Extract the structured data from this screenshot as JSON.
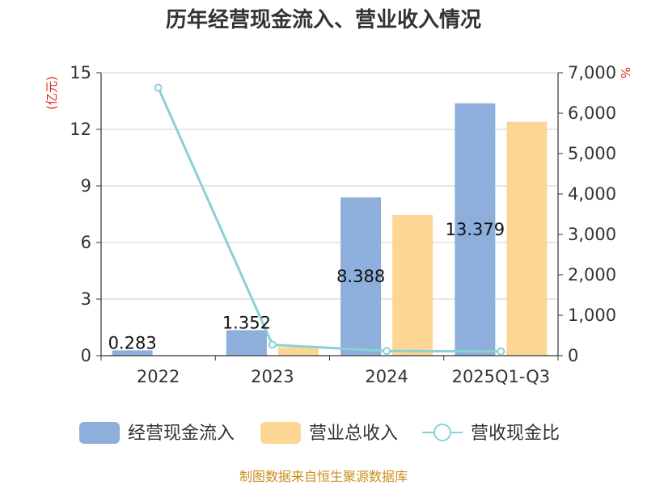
{
  "chart_data": {
    "type": "bar",
    "title": "历年经营现金流入、营业收入情况",
    "categories": [
      "2022",
      "2023",
      "2024",
      "2025Q1-Q3"
    ],
    "y_left": {
      "unit": "(亿元)",
      "range": [
        0,
        15
      ],
      "ticks": [
        "0",
        "3",
        "6",
        "9",
        "12",
        "15"
      ],
      "tick_values": [
        0,
        3,
        6,
        9,
        12,
        15
      ]
    },
    "y_right": {
      "unit": "%",
      "range": [
        0,
        7000
      ],
      "ticks": [
        "0",
        "1,000",
        "2,000",
        "3,000",
        "4,000",
        "5,000",
        "6,000",
        "7,000"
      ],
      "tick_values": [
        0,
        1000,
        2000,
        3000,
        4000,
        5000,
        6000,
        7000
      ]
    },
    "series": [
      {
        "name": "经营现金流入",
        "type": "bar",
        "axis": "left",
        "color": "#8eaedb",
        "values": [
          0.283,
          1.352,
          8.388,
          13.379
        ],
        "labels": [
          "0.283",
          "1.352",
          "8.388",
          "13.379"
        ]
      },
      {
        "name": "营业总收入",
        "type": "bar",
        "axis": "left",
        "color": "#fdd696",
        "values": [
          0.004,
          0.45,
          7.46,
          12.4
        ]
      },
      {
        "name": "营收现金比",
        "type": "line",
        "axis": "right",
        "color": "#8ad1d5",
        "values": [
          6630,
          270,
          115,
          105
        ]
      }
    ],
    "grid": true,
    "legend_position": "bottom"
  },
  "source": "制图数据来自恒生聚源数据库"
}
